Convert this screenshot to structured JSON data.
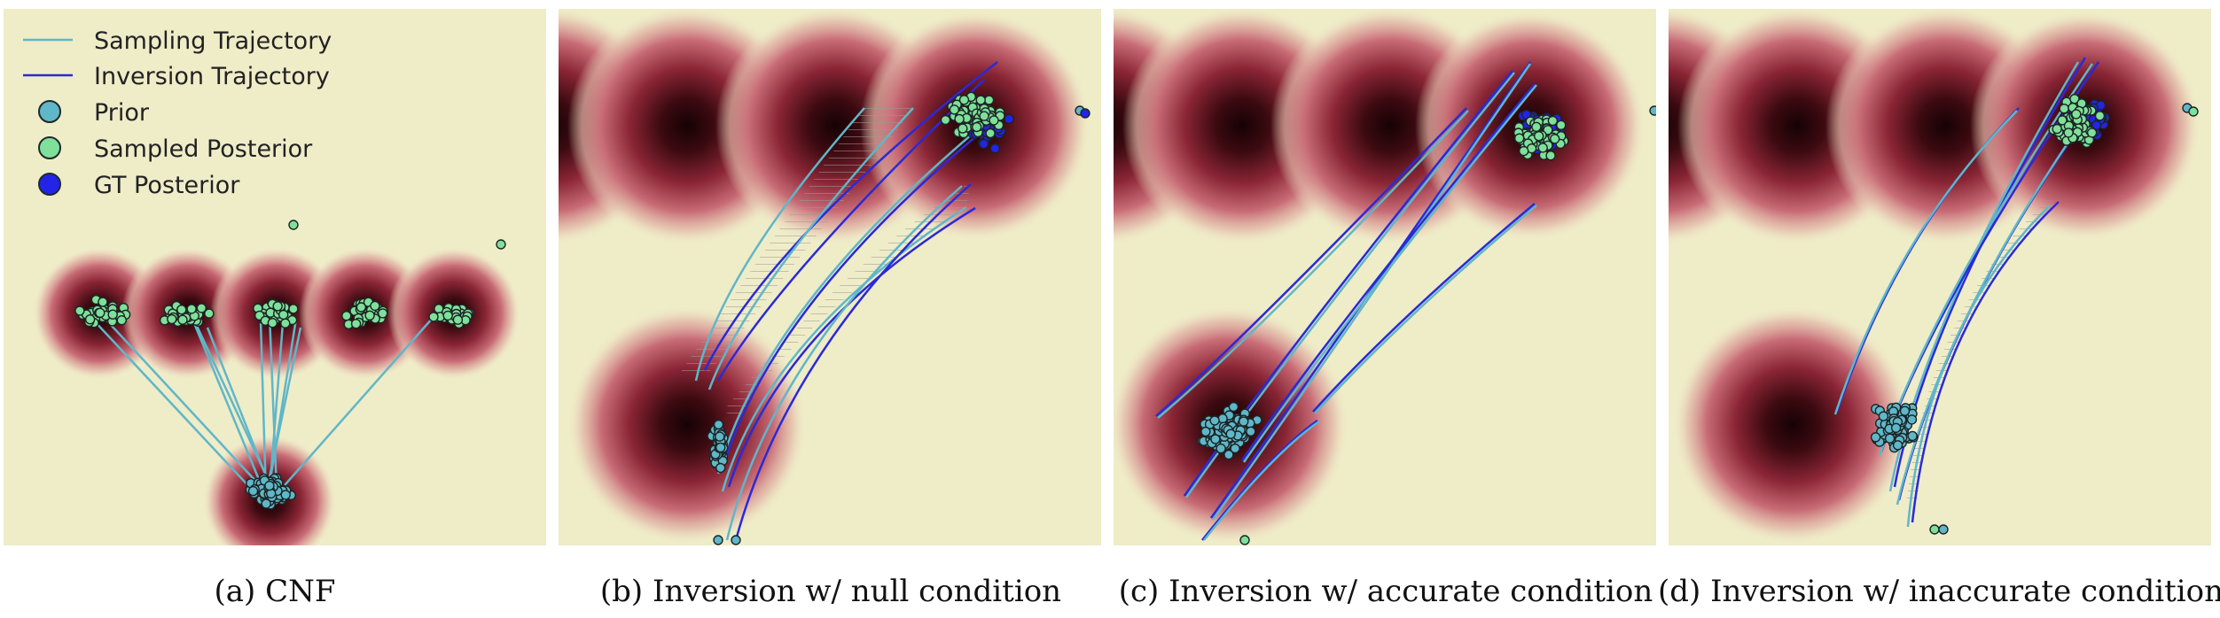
{
  "legend": {
    "items": [
      {
        "label": "Sampling Trajectory",
        "kind": "line",
        "color": "#5fb7c8"
      },
      {
        "label": "Inversion Trajectory",
        "kind": "line",
        "color": "#2a2ad8"
      },
      {
        "label": "Prior",
        "kind": "dot",
        "color": "#5fb7c8"
      },
      {
        "label": "Sampled Posterior",
        "kind": "dot",
        "color": "#7fe09a"
      },
      {
        "label": "GT Posterior",
        "kind": "dot",
        "color": "#2424e8"
      }
    ]
  },
  "colors": {
    "background": "#efecc8",
    "density_core": "#1a0306",
    "density_mid": "#8a2535",
    "density_edge": "#d38a8f",
    "sampling": "#5fb7c8",
    "inversion": "#2a2ad8",
    "prior": "#5fb7c8",
    "sampled_posterior": "#7fe09a",
    "gt_posterior": "#2424e8",
    "hatch": "#9a9a9a"
  },
  "panels": [
    {
      "id": "a",
      "caption": "(a) CNF"
    },
    {
      "id": "b",
      "caption": "(b) Inversion w/ null condition"
    },
    {
      "id": "c",
      "caption": "(c) Inversion w/ accurate condition"
    },
    {
      "id": "d",
      "caption": "(d) Inversion w/ inaccurate condition"
    }
  ]
}
